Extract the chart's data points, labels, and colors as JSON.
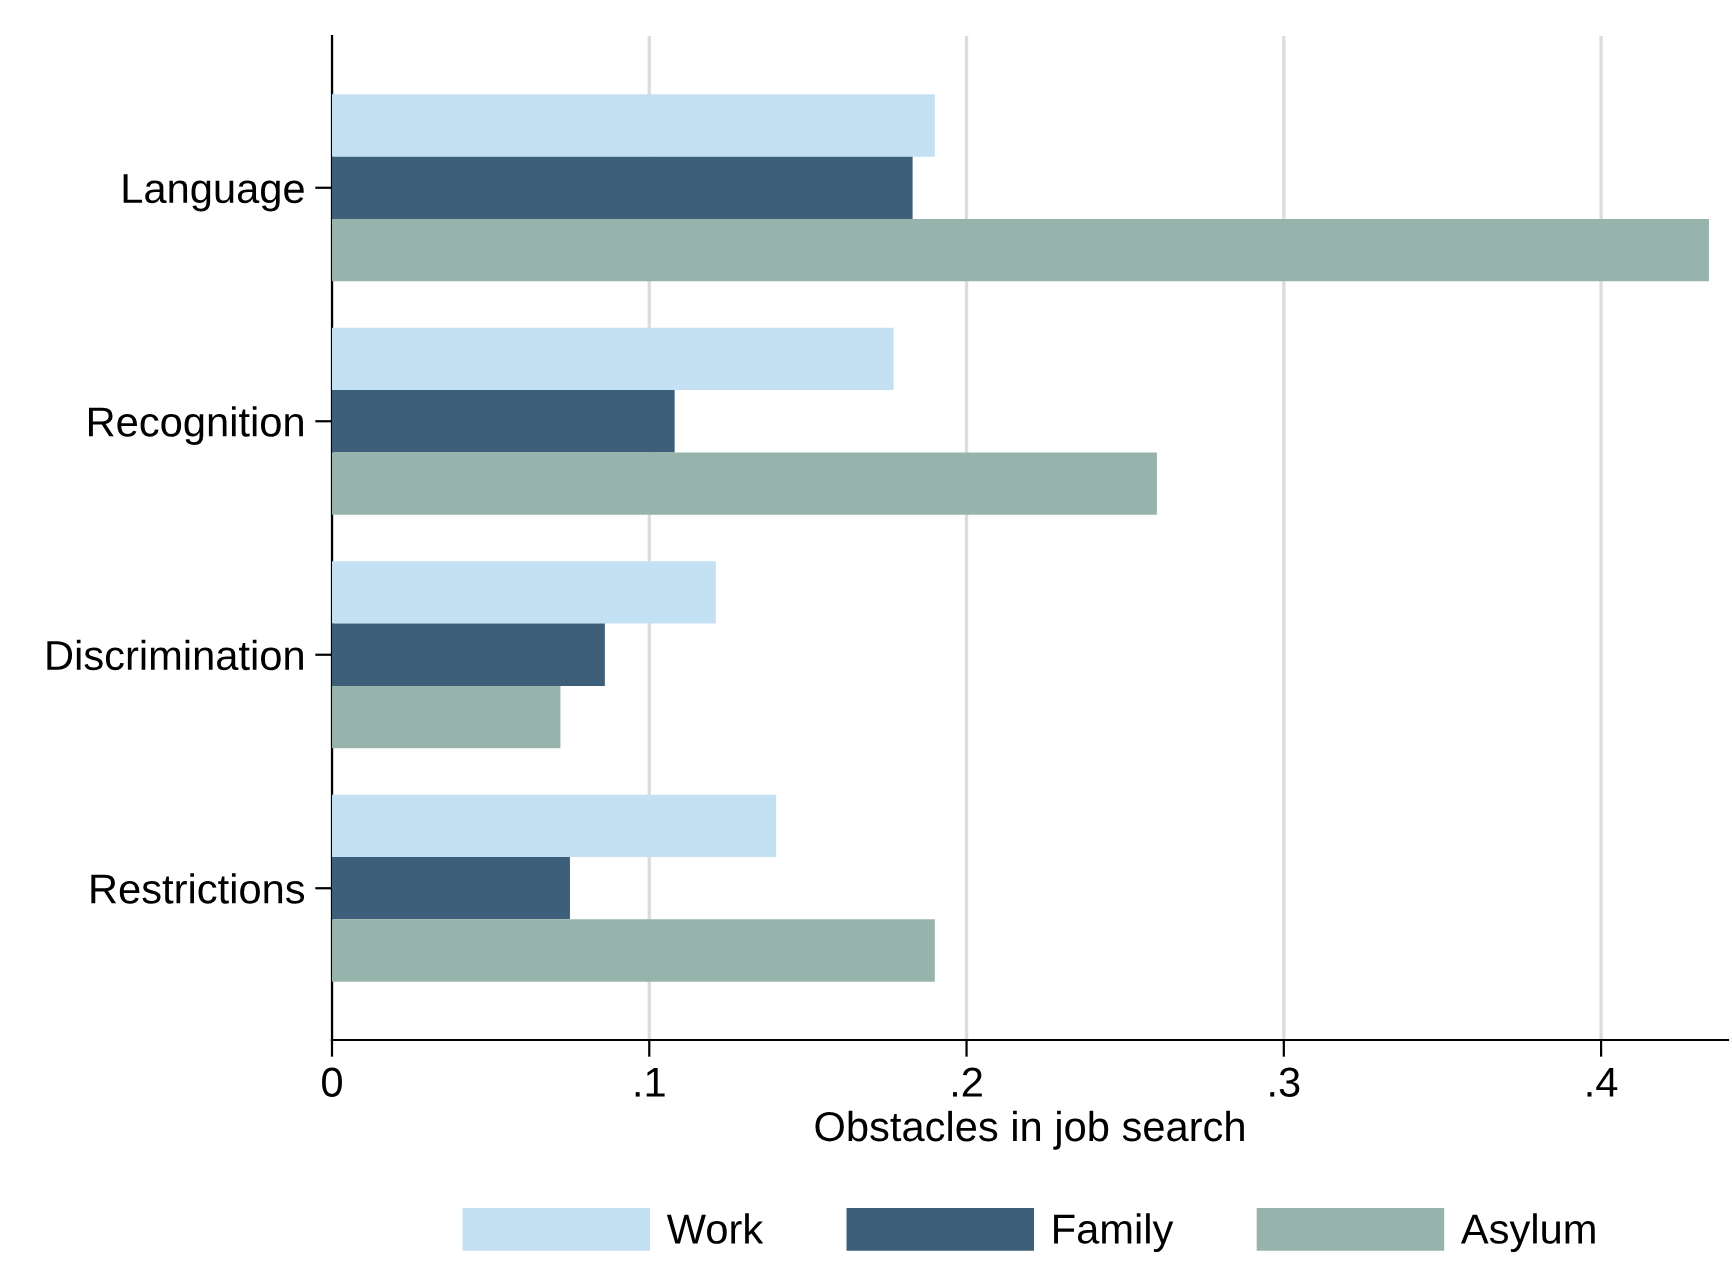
{
  "chart_data": {
    "type": "bar",
    "orientation": "horizontal",
    "xlabel": "Obstacles in job search",
    "categories": [
      "Language",
      "Recognition",
      "Discrimination",
      "Restrictions"
    ],
    "series": [
      {
        "name": "Work",
        "color": "#c4e1f4",
        "values": [
          0.19,
          0.177,
          0.121,
          0.14
        ]
      },
      {
        "name": "Family",
        "color": "#3e5f7a",
        "values": [
          0.183,
          0.108,
          0.086,
          0.075
        ]
      },
      {
        "name": "Asylum",
        "color": "#97b4ac",
        "values": [
          0.434,
          0.26,
          0.072,
          0.19
        ]
      }
    ],
    "xlim": [
      0,
      0.44
    ],
    "xticks": [
      0,
      {
        "value": 0.1,
        "label": ".1"
      },
      {
        "value": 0.2,
        "label": ".2"
      },
      {
        "value": 0.3,
        "label": ".3"
      },
      {
        "value": 0.4,
        "label": ".4"
      }
    ],
    "grid": "x",
    "legend": "bottom"
  }
}
